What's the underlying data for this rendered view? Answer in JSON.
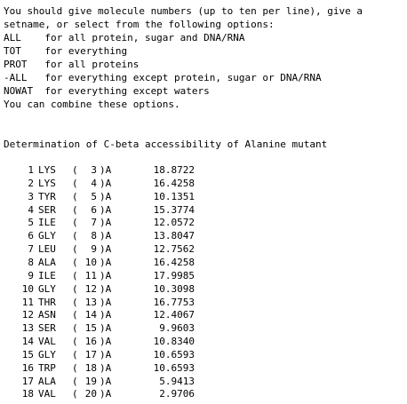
{
  "console": {
    "intro_lines": [
      "You should give molecule numbers (up to ten per line), give a",
      "setname, or select from the following options:",
      "ALL    for all protein, sugar and DNA/RNA",
      "TOT    for everything",
      "PROT   for all proteins",
      "-ALL   for everything except protein, sugar or DNA/RNA",
      "NOWAT  for everything except waters",
      "You can combine these options."
    ],
    "heading": "Determination of C-beta accessibility of Alanine mutant",
    "residues": [
      {
        "idx": "1",
        "res": "LYS",
        "num": "3",
        "chain": ")A",
        "value": "18.8722"
      },
      {
        "idx": "2",
        "res": "LYS",
        "num": "4",
        "chain": ")A",
        "value": "16.4258"
      },
      {
        "idx": "3",
        "res": "TYR",
        "num": "5",
        "chain": ")A",
        "value": "10.1351"
      },
      {
        "idx": "4",
        "res": "SER",
        "num": "6",
        "chain": ")A",
        "value": "15.3774"
      },
      {
        "idx": "5",
        "res": "ILE",
        "num": "7",
        "chain": ")A",
        "value": "12.0572"
      },
      {
        "idx": "6",
        "res": "GLY",
        "num": "8",
        "chain": ")A",
        "value": "13.8047"
      },
      {
        "idx": "7",
        "res": "LEU",
        "num": "9",
        "chain": ")A",
        "value": "12.7562"
      },
      {
        "idx": "8",
        "res": "ALA",
        "num": "10",
        "chain": ")A",
        "value": "16.4258"
      },
      {
        "idx": "9",
        "res": "ILE",
        "num": "11",
        "chain": ")A",
        "value": "17.9985"
      },
      {
        "idx": "10",
        "res": "GLY",
        "num": "12",
        "chain": ")A",
        "value": "10.3098"
      },
      {
        "idx": "11",
        "res": "THR",
        "num": "13",
        "chain": ")A",
        "value": "16.7753"
      },
      {
        "idx": "12",
        "res": "ASN",
        "num": "14",
        "chain": ")A",
        "value": "12.4067"
      },
      {
        "idx": "13",
        "res": "SER",
        "num": "15",
        "chain": ")A",
        "value": "9.9603"
      },
      {
        "idx": "14",
        "res": "VAL",
        "num": "16",
        "chain": ")A",
        "value": "10.8340"
      },
      {
        "idx": "15",
        "res": "GLY",
        "num": "17",
        "chain": ")A",
        "value": "10.6593"
      },
      {
        "idx": "16",
        "res": "TRP",
        "num": "18",
        "chain": ")A",
        "value": "10.6593"
      },
      {
        "idx": "17",
        "res": "ALA",
        "num": "19",
        "chain": ")A",
        "value": "5.9413"
      },
      {
        "idx": "18",
        "res": "VAL",
        "num": "20",
        "chain": ")A",
        "value": "2.9706"
      }
    ]
  }
}
